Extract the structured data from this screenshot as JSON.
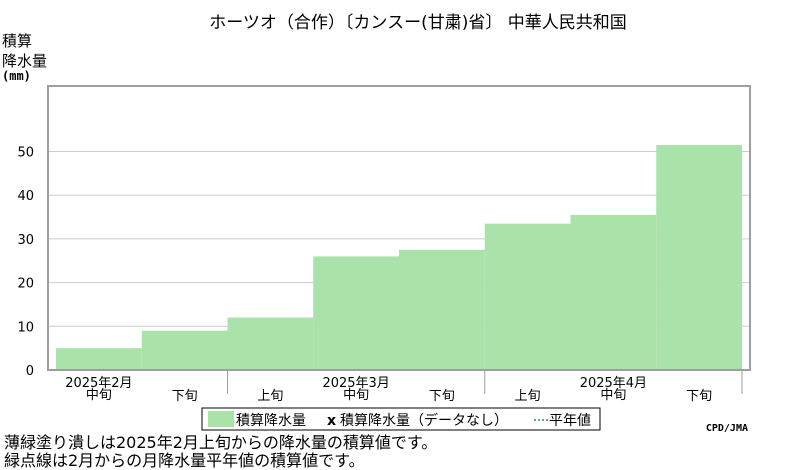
{
  "chart_data": {
    "type": "area",
    "title": "ホーツオ（合作）〔カンスー(甘粛)省〕 中華人民共和国",
    "ylabel_lines": [
      "積算",
      "降水量",
      "(mm)"
    ],
    "ylim": [
      0,
      65
    ],
    "yticks": [
      0,
      10,
      20,
      30,
      40,
      50
    ],
    "grid": true,
    "x_dekads": [
      {
        "label": "中旬",
        "group": "2025年2月"
      },
      {
        "label": "下旬",
        "group": ""
      },
      {
        "label": "上旬",
        "group": ""
      },
      {
        "label": "中旬",
        "group": "2025年3月"
      },
      {
        "label": "下旬",
        "group": ""
      },
      {
        "label": "上旬",
        "group": ""
      },
      {
        "label": "中旬",
        "group": "2025年4月"
      },
      {
        "label": "下旬",
        "group": ""
      }
    ],
    "series": [
      {
        "name": "積算降水量",
        "values": [
          5.0,
          9.0,
          12.0,
          26.0,
          27.5,
          33.5,
          35.5,
          51.5
        ]
      }
    ],
    "legend": {
      "entries": [
        "積算降水量",
        "積算降水量（データなし）",
        "平年値"
      ],
      "marker_nodata": "x",
      "placement": "bottom"
    },
    "colors": {
      "fill": "#aae3aa",
      "border": "#9e9e9e",
      "grid": "#cccccc"
    },
    "credit": "CPD/JMA",
    "notes": [
      "薄緑塗り潰しは2025年2月上旬からの降水量の積算値です。",
      "緑点線は2月からの月降水量平年値の積算値です。"
    ]
  }
}
